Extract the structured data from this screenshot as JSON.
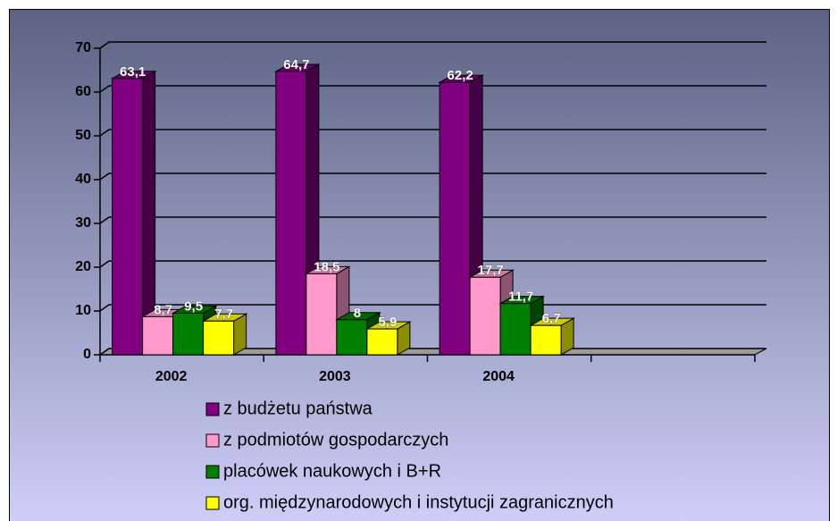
{
  "chart_data": {
    "type": "bar3d",
    "categories": [
      "2002",
      "2003",
      "2004",
      null
    ],
    "series": [
      {
        "name": "z budżetu państwa",
        "color": "#800080",
        "values": [
          63.1,
          64.7,
          62.2,
          null
        ],
        "value_labels": [
          "63,1",
          "64,7",
          "62,2",
          null
        ]
      },
      {
        "name": "z podmiotów gospodarczych",
        "color": "#ff99cc",
        "values": [
          8.7,
          18.5,
          17.7,
          null
        ],
        "value_labels": [
          "8,7",
          "18,5",
          "17,7",
          null
        ]
      },
      {
        "name": "placówek naukowych i B+R",
        "color": "#008000",
        "values": [
          9.5,
          8,
          11.7,
          null
        ],
        "value_labels": [
          "9,5",
          "8",
          "11,7",
          null
        ]
      },
      {
        "name": "org. międzynarodowych i instytucji zagranicznych",
        "color": "#ffff00",
        "values": [
          7.7,
          5.9,
          6.7,
          null
        ],
        "value_labels": [
          "7,7",
          "5,9",
          "6,7",
          null
        ]
      }
    ],
    "ylim": [
      0,
      70
    ],
    "yticks": [
      0,
      10,
      20,
      30,
      40,
      50,
      60,
      70
    ],
    "grid": true,
    "legend": "bottom"
  }
}
